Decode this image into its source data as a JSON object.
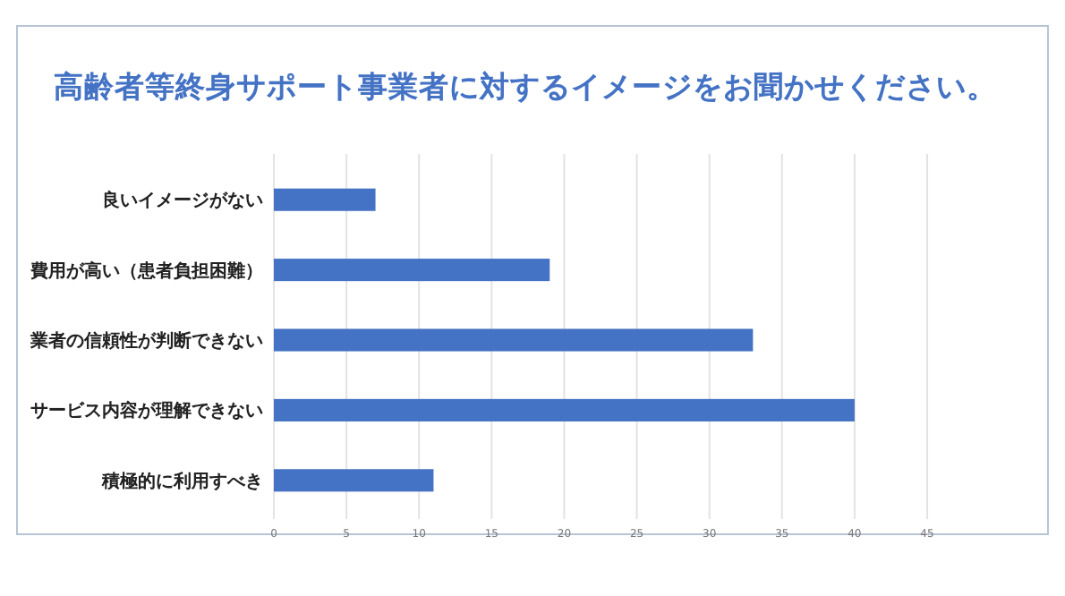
{
  "chart_data": {
    "type": "bar",
    "orientation": "horizontal",
    "title": "高齢者等終身サポート事業者に対するイメージをお聞かせください。",
    "categories": [
      "良いイメージがない",
      "費用が高い（患者負担困難）",
      "業者の信頼性が判断できない",
      "サービス内容が理解できない",
      "積極的に利用すべき"
    ],
    "values": [
      7,
      19,
      33,
      40,
      11
    ],
    "color": "#4472c4",
    "xlim": [
      0,
      45
    ],
    "xticks": [
      0,
      5,
      10,
      15,
      20,
      25,
      30,
      35,
      40,
      45
    ],
    "grid": "x"
  }
}
